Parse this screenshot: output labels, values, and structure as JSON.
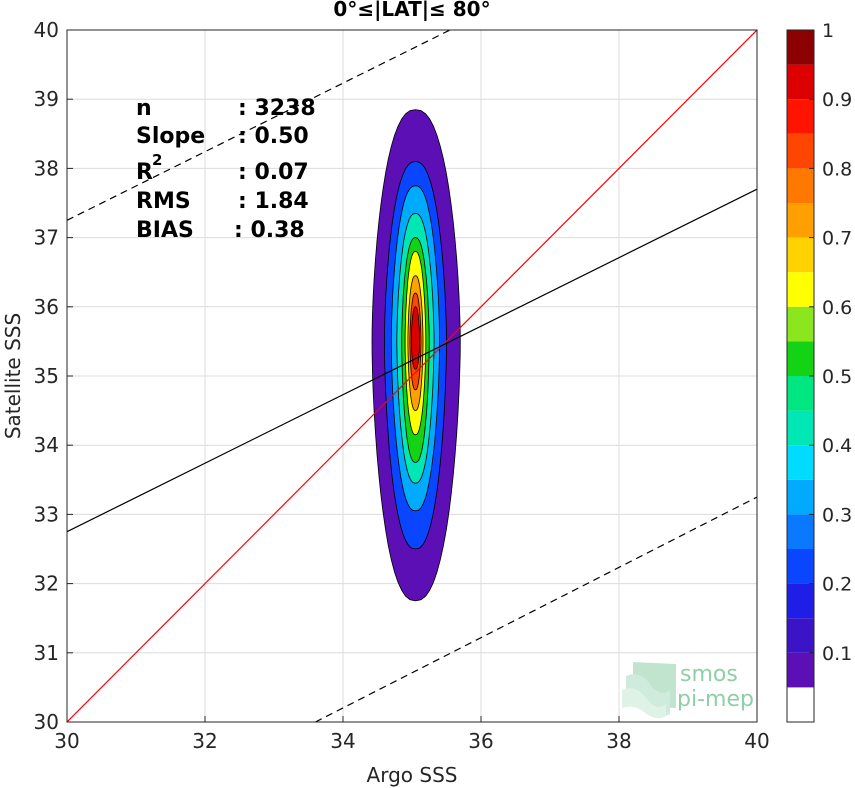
{
  "chart_data": {
    "type": "contour",
    "title": "0°≤|LAT|≤ 80°",
    "xlabel": "Argo SSS",
    "ylabel": "Satellite SSS",
    "xlim": [
      30,
      40
    ],
    "ylim": [
      30,
      40
    ],
    "x_ticks": [
      "30",
      "32",
      "34",
      "36",
      "38",
      "40"
    ],
    "y_ticks": [
      "30",
      "31",
      "32",
      "33",
      "34",
      "35",
      "36",
      "37",
      "38",
      "39",
      "40"
    ],
    "grid": true,
    "stats": [
      {
        "label": "n",
        "value": ": 3238"
      },
      {
        "label": "Slope",
        "value": ": 0.50"
      },
      {
        "label": "R",
        "sup": "2",
        "value": ": 0.07"
      },
      {
        "label": "RMS",
        "value": ": 1.84"
      },
      {
        "label": "BIAS",
        "value": ": 0.38"
      }
    ],
    "lines": [
      {
        "role": "one-to-one",
        "color": "#ff0000",
        "style": "solid",
        "points": [
          [
            30,
            30
          ],
          [
            40,
            40
          ]
        ]
      },
      {
        "role": "regression",
        "color": "#000000",
        "style": "solid",
        "points": [
          [
            30,
            32.75
          ],
          [
            40,
            37.7
          ]
        ]
      },
      {
        "role": "upper-bound",
        "color": "#000000",
        "style": "dashed",
        "points": [
          [
            30,
            37.25
          ],
          [
            35.55,
            40
          ]
        ]
      },
      {
        "role": "lower-bound",
        "color": "#000000",
        "style": "dashed",
        "points": [
          [
            33.6,
            30
          ],
          [
            40,
            33.25
          ]
        ]
      }
    ],
    "density_center": {
      "x": 35.05,
      "y": 35.5
    },
    "density_contours": [
      {
        "level": 0.05,
        "x_range": [
          34.42,
          35.7
        ],
        "y_range": [
          31.75,
          38.85
        ]
      },
      {
        "level": 0.2,
        "x_range": [
          34.6,
          35.5
        ],
        "y_range": [
          32.5,
          38.1
        ]
      },
      {
        "level": 0.3,
        "x_range": [
          34.7,
          35.4
        ],
        "y_range": [
          33.05,
          37.75
        ]
      },
      {
        "level": 0.4,
        "x_range": [
          34.78,
          35.32
        ],
        "y_range": [
          33.45,
          37.35
        ]
      },
      {
        "level": 0.5,
        "x_range": [
          34.85,
          35.25
        ],
        "y_range": [
          33.75,
          37.0
        ]
      },
      {
        "level": 0.6,
        "x_range": [
          34.9,
          35.2
        ],
        "y_range": [
          34.15,
          36.8
        ]
      },
      {
        "level": 0.7,
        "x_range": [
          34.94,
          35.16
        ],
        "y_range": [
          34.5,
          36.45
        ]
      },
      {
        "level": 0.8,
        "x_range": [
          34.97,
          35.13
        ],
        "y_range": [
          34.8,
          36.2
        ]
      },
      {
        "level": 0.9,
        "x_range": [
          34.99,
          35.11
        ],
        "y_range": [
          35.1,
          36.0
        ]
      }
    ],
    "colorbar": {
      "ticks": [
        "0.1",
        "0.2",
        "0.3",
        "0.4",
        "0.5",
        "0.6",
        "0.7",
        "0.8",
        "0.9",
        "1"
      ],
      "levels": [
        {
          "from": 0.0,
          "to": 0.05,
          "color": "#ffffff"
        },
        {
          "from": 0.05,
          "to": 0.1,
          "color": "#5b0fb4"
        },
        {
          "from": 0.1,
          "to": 0.15,
          "color": "#3c14c8"
        },
        {
          "from": 0.15,
          "to": 0.2,
          "color": "#1e1ee6"
        },
        {
          "from": 0.2,
          "to": 0.25,
          "color": "#0a46ff"
        },
        {
          "from": 0.25,
          "to": 0.3,
          "color": "#0a78ff"
        },
        {
          "from": 0.3,
          "to": 0.35,
          "color": "#00aaff"
        },
        {
          "from": 0.35,
          "to": 0.4,
          "color": "#00dcff"
        },
        {
          "from": 0.4,
          "to": 0.45,
          "color": "#00e6b4"
        },
        {
          "from": 0.45,
          "to": 0.5,
          "color": "#00e680"
        },
        {
          "from": 0.5,
          "to": 0.55,
          "color": "#14d214"
        },
        {
          "from": 0.55,
          "to": 0.6,
          "color": "#8ce61e"
        },
        {
          "from": 0.6,
          "to": 0.65,
          "color": "#ffff00"
        },
        {
          "from": 0.65,
          "to": 0.7,
          "color": "#ffd200"
        },
        {
          "from": 0.7,
          "to": 0.75,
          "color": "#ffa000"
        },
        {
          "from": 0.75,
          "to": 0.8,
          "color": "#ff7800"
        },
        {
          "from": 0.8,
          "to": 0.85,
          "color": "#ff4600"
        },
        {
          "from": 0.85,
          "to": 0.9,
          "color": "#ff1400"
        },
        {
          "from": 0.9,
          "to": 0.95,
          "color": "#dc0000"
        },
        {
          "from": 0.95,
          "to": 1.0,
          "color": "#8c0000"
        }
      ]
    }
  },
  "logo": {
    "line1": "smos",
    "line2": "pi-mep"
  }
}
